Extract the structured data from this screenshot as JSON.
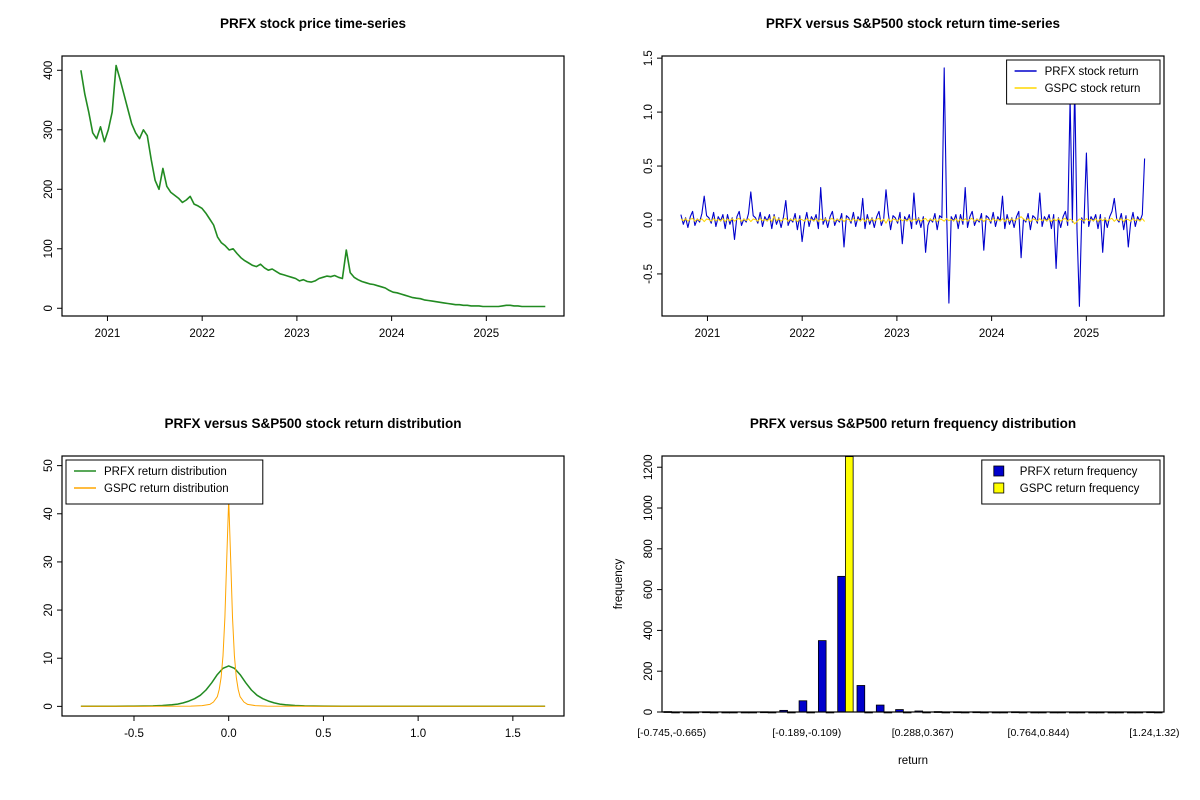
{
  "chart_data": [
    {
      "id": "prfx-price",
      "type": "line",
      "title": "PRFX stock price time-series",
      "xlim": [
        2020.52,
        2025.82
      ],
      "xticks": [
        2021,
        2022,
        2023,
        2024,
        2025
      ],
      "ylim": [
        -13,
        424
      ],
      "yticks": [
        0,
        100,
        200,
        300,
        400
      ],
      "x_start": 2020.72,
      "x_step": 0.0412,
      "series": [
        {
          "name": "PRFX stock price",
          "color": "#228B22",
          "width": 1.6,
          "values": [
            400,
            360,
            330,
            295,
            285,
            305,
            280,
            300,
            330,
            408,
            385,
            360,
            335,
            310,
            295,
            285,
            300,
            290,
            250,
            215,
            200,
            235,
            205,
            195,
            190,
            185,
            178,
            182,
            188,
            175,
            172,
            168,
            160,
            150,
            140,
            120,
            110,
            105,
            98,
            100,
            92,
            85,
            80,
            76,
            72,
            70,
            74,
            68,
            64,
            66,
            62,
            58,
            56,
            54,
            52,
            50,
            46,
            48,
            45,
            44,
            46,
            50,
            52,
            54,
            53,
            55,
            52,
            50,
            98,
            60,
            52,
            48,
            45,
            43,
            41,
            40,
            38,
            36,
            34,
            30,
            27,
            26,
            24,
            22,
            20,
            18,
            17,
            16,
            14,
            13,
            12,
            11,
            10,
            9,
            8,
            7,
            6,
            6,
            5,
            5,
            4,
            4,
            4,
            3,
            3,
            3,
            3,
            3,
            4,
            5,
            5,
            4,
            4,
            3,
            3,
            3,
            3,
            3,
            3,
            3
          ]
        }
      ]
    },
    {
      "id": "returns",
      "type": "line",
      "title": "PRFX versus S&P500 stock return time-series",
      "xlim": [
        2020.52,
        2025.82
      ],
      "xticks": [
        2021,
        2022,
        2023,
        2024,
        2025
      ],
      "ylim": [
        -0.89,
        1.52
      ],
      "yticks": [
        -0.5,
        0.0,
        0.5,
        1.0,
        1.5
      ],
      "ytick_labels": [
        "-0.5",
        "0.0",
        "0.5",
        "1.0",
        "1.5"
      ],
      "x_start": 2020.72,
      "x_step": 0.0246,
      "legend": {
        "position": "top-right"
      },
      "series": [
        {
          "name": "PRFX stock return",
          "color": "#0000CC",
          "width": 1.1,
          "values": [
            0.05,
            -0.04,
            0.02,
            -0.07,
            0.03,
            0.08,
            -0.05,
            0.01,
            -0.02,
            0.06,
            0.22,
            0.04,
            0.02,
            -0.03,
            0.07,
            -0.06,
            0.03,
            -0.01,
            0.05,
            -0.08,
            0.05,
            -0.04,
            0.02,
            -0.18,
            0.03,
            0.08,
            -0.05,
            0.01,
            -0.02,
            0.06,
            0.26,
            0.04,
            0.02,
            -0.03,
            0.07,
            -0.06,
            0.03,
            -0.01,
            0.05,
            -0.08,
            0.05,
            -0.04,
            0.02,
            -0.07,
            0.03,
            0.18,
            -0.05,
            0.01,
            -0.02,
            0.06,
            -0.09,
            0.04,
            -0.2,
            -0.03,
            0.07,
            -0.06,
            0.03,
            -0.01,
            0.05,
            -0.08,
            0.3,
            -0.04,
            0.02,
            -0.07,
            0.03,
            0.08,
            -0.05,
            0.01,
            -0.02,
            0.06,
            -0.25,
            0.04,
            0.02,
            -0.03,
            0.07,
            -0.06,
            0.03,
            -0.01,
            0.2,
            -0.08,
            0.05,
            -0.04,
            0.02,
            -0.07,
            0.03,
            0.08,
            -0.05,
            0.01,
            0.28,
            0.06,
            -0.09,
            0.04,
            0.02,
            -0.03,
            0.07,
            -0.22,
            0.03,
            -0.01,
            0.05,
            -0.08,
            0.25,
            -0.04,
            0.02,
            -0.07,
            0.03,
            -0.3,
            -0.05,
            0.01,
            -0.02,
            0.06,
            -0.09,
            0.04,
            0.02,
            1.41,
            0.07,
            -0.77,
            0.03,
            -0.01,
            0.05,
            -0.08,
            0.05,
            -0.04,
            0.3,
            -0.07,
            0.03,
            0.08,
            -0.05,
            0.01,
            -0.02,
            0.06,
            -0.28,
            0.04,
            0.02,
            -0.03,
            0.07,
            -0.06,
            0.03,
            -0.01,
            0.22,
            -0.08,
            0.05,
            -0.04,
            0.02,
            -0.07,
            0.03,
            0.08,
            -0.35,
            0.01,
            -0.02,
            0.06,
            -0.09,
            0.04,
            0.02,
            -0.03,
            0.25,
            -0.06,
            0.03,
            -0.01,
            0.05,
            -0.08,
            0.05,
            -0.45,
            0.02,
            -0.07,
            0.03,
            0.08,
            -0.05,
            1.12,
            -0.02,
            1.25,
            -0.09,
            -0.8,
            0.02,
            -0.03,
            0.62,
            -0.06,
            0.03,
            -0.01,
            0.05,
            -0.08,
            0.05,
            -0.3,
            0.02,
            -0.07,
            0.03,
            0.08,
            0.2,
            0.01,
            -0.02,
            0.06,
            -0.09,
            0.04,
            -0.25,
            -0.03,
            0.07,
            -0.06,
            0.03,
            -0.01,
            0.05,
            0.57
          ]
        },
        {
          "name": "GSPC stock return",
          "color": "#FFD700",
          "width": 1.0,
          "values": [
            0.01,
            -0.008,
            0.012,
            -0.01,
            0.006,
            0.015,
            -0.012,
            0.008,
            -0.006,
            0.011,
            -0.015,
            0.009,
            0.004,
            -0.011,
            0.013,
            -0.007,
            0.005,
            -0.009,
            0.012,
            -0.014,
            0.01,
            -0.008,
            0.012,
            -0.01,
            0.006,
            0.015,
            -0.012,
            0.008,
            -0.006,
            0.011,
            -0.015,
            0.009,
            0.004,
            -0.011,
            0.013,
            -0.007,
            0.005,
            -0.009,
            0.012,
            -0.014,
            0.035,
            -0.008,
            0.012,
            -0.01,
            0.006,
            0.015,
            -0.012,
            0.008,
            -0.006,
            0.011,
            -0.015,
            0.009,
            0.004,
            -0.011,
            0.013,
            -0.007,
            0.005,
            -0.009,
            0.012,
            -0.014,
            0.01,
            -0.008,
            0.012,
            -0.01,
            0.006,
            0.015,
            -0.012,
            0.008,
            -0.006,
            0.011,
            -0.015,
            0.009,
            0.004,
            -0.011,
            0.013,
            -0.007,
            0.005,
            -0.009,
            0.012,
            -0.014,
            0.01,
            -0.008,
            0.012,
            -0.01,
            0.006,
            0.015,
            -0.012,
            0.008,
            -0.03,
            0.011,
            -0.015,
            0.009,
            0.004,
            -0.011,
            0.013,
            -0.007,
            0.005,
            -0.009,
            0.012,
            -0.014,
            0.01,
            -0.008,
            0.012,
            -0.01,
            0.006,
            0.015,
            -0.012,
            0.008,
            -0.006,
            0.011,
            -0.015,
            0.009,
            0.004,
            -0.011,
            0.013,
            -0.007,
            0.005,
            -0.009,
            0.012,
            -0.014,
            0.01,
            -0.008,
            0.012,
            -0.01,
            0.006,
            0.015,
            -0.012,
            0.008,
            -0.006,
            0.011,
            -0.015,
            0.009,
            0.004,
            -0.011,
            0.013,
            -0.007,
            0.005,
            -0.009,
            0.012,
            -0.014,
            0.01,
            -0.008,
            0.012,
            -0.01,
            0.006,
            0.015,
            0.03,
            0.008,
            -0.006,
            0.011,
            -0.015,
            0.009,
            0.004,
            -0.011,
            0.013,
            -0.007,
            0.005,
            -0.009,
            0.012,
            -0.014,
            0.01,
            -0.008,
            0.012,
            -0.01,
            0.006,
            0.015,
            -0.012,
            0.008,
            -0.006,
            -0.035,
            -0.015,
            0.009,
            0.004,
            -0.011,
            0.013,
            -0.007,
            0.005,
            -0.009,
            0.012,
            -0.014,
            0.01,
            -0.008,
            0.012,
            -0.01,
            0.006,
            0.015,
            -0.012,
            0.008,
            -0.006,
            0.011,
            -0.015,
            0.009,
            0.004,
            -0.011,
            0.013,
            -0.007,
            0.005,
            -0.009,
            0.012,
            -0.014
          ]
        }
      ]
    },
    {
      "id": "density",
      "type": "xyline",
      "title": "PRFX versus S&P500 stock return distribution",
      "xlim": [
        -0.88,
        1.77
      ],
      "xticks": [
        -0.5,
        0.0,
        0.5,
        1.0,
        1.5
      ],
      "xtick_labels": [
        "-0.5",
        "0.0",
        "0.5",
        "1.0",
        "1.5"
      ],
      "ylim": [
        -2,
        52
      ],
      "yticks": [
        0,
        10,
        20,
        30,
        40,
        50
      ],
      "legend": {
        "position": "top-left"
      },
      "series": [
        {
          "name": "PRFX return distribution",
          "color": "#228B22",
          "width": 1.5,
          "x": [
            -0.78,
            -0.6,
            -0.5,
            -0.45,
            -0.4,
            -0.35,
            -0.3,
            -0.27,
            -0.24,
            -0.21,
            -0.18,
            -0.15,
            -0.12,
            -0.09,
            -0.06,
            -0.03,
            0,
            0.03,
            0.06,
            0.09,
            0.12,
            0.15,
            0.18,
            0.21,
            0.24,
            0.27,
            0.3,
            0.35,
            0.4,
            0.45,
            0.5,
            0.6,
            0.7,
            0.9,
            1.1,
            1.4,
            1.67
          ],
          "y": [
            0.02,
            0.03,
            0.05,
            0.07,
            0.1,
            0.18,
            0.32,
            0.48,
            0.72,
            1.1,
            1.6,
            2.3,
            3.4,
            4.9,
            6.6,
            7.9,
            8.4,
            7.9,
            6.6,
            4.9,
            3.4,
            2.3,
            1.6,
            1.1,
            0.72,
            0.48,
            0.32,
            0.18,
            0.1,
            0.07,
            0.05,
            0.03,
            0.02,
            0.02,
            0.02,
            0.02,
            0.02
          ]
        },
        {
          "name": "GSPC return distribution",
          "color": "#FFA500",
          "width": 1.0,
          "x": [
            -0.78,
            -0.4,
            -0.2,
            -0.14,
            -0.1,
            -0.08,
            -0.06,
            -0.05,
            -0.04,
            -0.03,
            -0.02,
            -0.01,
            0,
            0.01,
            0.02,
            0.03,
            0.04,
            0.05,
            0.06,
            0.08,
            0.1,
            0.14,
            0.2,
            0.4,
            1.67
          ],
          "y": [
            0.02,
            0.02,
            0.05,
            0.15,
            0.4,
            0.9,
            2,
            3.5,
            6,
            10.5,
            18.5,
            31,
            43,
            31,
            18.5,
            10.5,
            6,
            3.5,
            2,
            0.9,
            0.4,
            0.15,
            0.05,
            0.02,
            0.02
          ]
        }
      ]
    },
    {
      "id": "frequency",
      "type": "bars",
      "title": "PRFX versus S&P500 return frequency distribution",
      "xlabel": "return",
      "ylabel": "frequency",
      "ylim": [
        0,
        1255
      ],
      "yticks": [
        0,
        200,
        400,
        600,
        800,
        1000,
        1200
      ],
      "bin_count": 26,
      "xtick_bins": [
        0,
        7,
        13,
        19,
        25
      ],
      "xtick_labels": [
        "[-0.745,-0.665)",
        "[-0.189,-0.109)",
        "[0.288,0.367)",
        "[0.764,0.844)",
        "[1.24,1.32)"
      ],
      "legend": {
        "position": "top-right"
      },
      "series": [
        {
          "name": "PRFX return frequency",
          "color": "#0000CC",
          "values": [
            2,
            0,
            1,
            0,
            0,
            1,
            8,
            55,
            350,
            665,
            130,
            34,
            12,
            5,
            2,
            1,
            1,
            0,
            1,
            0,
            0,
            0,
            0,
            0,
            0,
            1
          ]
        },
        {
          "name": "GSPC return frequency",
          "color": "#FFFF00",
          "values": [
            0,
            0,
            0,
            0,
            0,
            0,
            0,
            0,
            0,
            1252,
            0,
            0,
            0,
            0,
            0,
            0,
            0,
            0,
            0,
            0,
            0,
            0,
            0,
            0,
            0,
            0
          ]
        }
      ]
    }
  ]
}
